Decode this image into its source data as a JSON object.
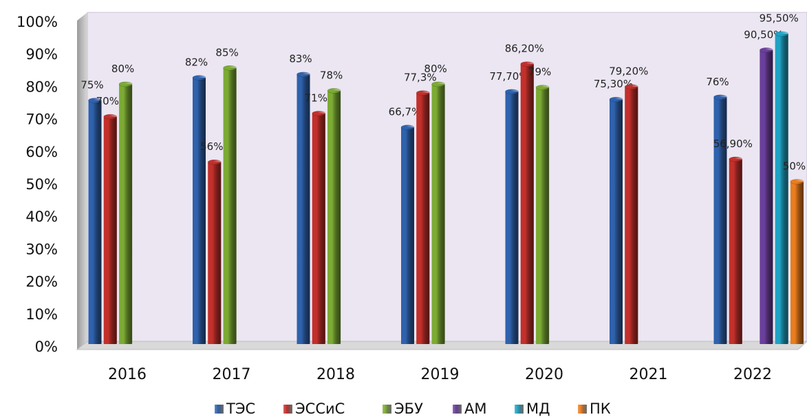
{
  "chart_data": {
    "type": "bar",
    "categories": [
      "2016",
      "2017",
      "2018",
      "2019",
      "2020",
      "2021",
      "2022"
    ],
    "series": [
      {
        "name": "ТЭС",
        "color": "#2f62ad",
        "values": [
          75,
          82,
          83,
          66.7,
          77.7,
          75.3,
          76
        ],
        "value_labels": [
          "75%",
          "82%",
          "83%",
          "66,7%",
          "77,70%",
          "75,30%",
          "76%"
        ]
      },
      {
        "name": "ЭССиС",
        "color": "#c3302b",
        "values": [
          70,
          56,
          71,
          77.3,
          86.2,
          79.2,
          56.9
        ],
        "value_labels": [
          "70%",
          "56%",
          "71%",
          "77,3%",
          "86,20%",
          "79,20%",
          "56,90%"
        ]
      },
      {
        "name": "ЭБУ",
        "color": "#7cab34",
        "values": [
          80,
          85,
          78,
          80,
          79,
          null,
          null
        ],
        "value_labels": [
          "80%",
          "85%",
          "78%",
          "80%",
          "79%",
          null,
          null
        ]
      },
      {
        "name": "АМ",
        "color": "#6b3f9c",
        "values": [
          null,
          null,
          null,
          null,
          null,
          null,
          90.5
        ],
        "value_labels": [
          null,
          null,
          null,
          null,
          null,
          null,
          "90,50%"
        ]
      },
      {
        "name": "МД",
        "color": "#1fa3c4",
        "values": [
          null,
          null,
          null,
          null,
          null,
          null,
          95.5
        ],
        "value_labels": [
          null,
          null,
          null,
          null,
          null,
          null,
          "95,50%"
        ]
      },
      {
        "name": "ПК",
        "color": "#ea7d1d",
        "values": [
          null,
          null,
          null,
          null,
          null,
          null,
          50
        ],
        "value_labels": [
          null,
          null,
          null,
          null,
          null,
          null,
          "50%"
        ]
      }
    ],
    "ylim": [
      0,
      100
    ],
    "yticks": [
      {
        "value": 0,
        "label": "0%"
      },
      {
        "value": 10,
        "label": "10%"
      },
      {
        "value": 20,
        "label": "20%"
      },
      {
        "value": 30,
        "label": "30%"
      },
      {
        "value": 40,
        "label": "40%"
      },
      {
        "value": 50,
        "label": "50%"
      },
      {
        "value": 60,
        "label": "60%"
      },
      {
        "value": 70,
        "label": "70%"
      },
      {
        "value": 80,
        "label": "80%"
      },
      {
        "value": 90,
        "label": "90%"
      },
      {
        "value": 100,
        "label": "100%"
      }
    ],
    "grid": false,
    "legend": "bottom"
  }
}
